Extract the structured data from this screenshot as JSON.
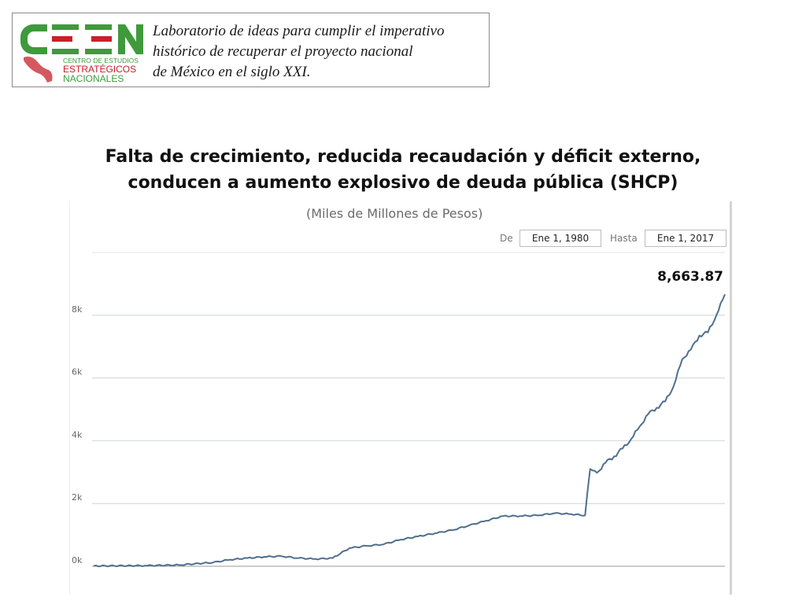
{
  "header": {
    "logo_text": "CEEN",
    "logo_sub": [
      "CENTRO DE ESTUDIOS",
      "ESTRATÉGICOS",
      "NACIONALES"
    ],
    "tagline": [
      "Laboratorio de ideas para cumplir el imperativo",
      "histórico de recuperar el proyecto nacional",
      "de México en el siglo XXI."
    ],
    "colors": {
      "green": "#3f9a3c",
      "red": "#c8202a"
    }
  },
  "slide": {
    "title_lines": [
      "Falta de crecimiento, reducida recaudación y déficit externo,",
      "conducen a aumento explosivo de deuda pública (SHCP)"
    ]
  },
  "chart_controls": {
    "from_label": "De",
    "from_value": "Ene 1, 1980",
    "to_label": "Hasta",
    "to_value": "Ene 1, 2017"
  },
  "chart_data": {
    "type": "line",
    "subtitle": "(Miles de Millones de Pesos)",
    "xlim": [
      1980,
      2017
    ],
    "ylim": [
      0,
      10000
    ],
    "y_ticks": [
      0,
      2000,
      4000,
      6000,
      8000
    ],
    "y_tick_labels": [
      "0k",
      "2k",
      "4k",
      "6k",
      "8k"
    ],
    "last_value_label": "8,663.87",
    "line_color": "#4f6f8f",
    "grid": true,
    "x": [
      1980,
      1983,
      1985,
      1987,
      1988,
      1989,
      1990,
      1991,
      1992,
      1993,
      1994,
      1995,
      1996,
      1997,
      1998,
      1999,
      2000,
      2001,
      2002,
      2003,
      2004,
      2005,
      2006,
      2007,
      2008,
      2008.8,
      2009.1,
      2009.5,
      2010,
      2010.5,
      2011,
      2011.5,
      2012,
      2012.5,
      2013,
      2013.5,
      2014,
      2014.5,
      2015,
      2015.5,
      2016,
      2016.5,
      2017
    ],
    "y": [
      10,
      20,
      40,
      120,
      210,
      260,
      300,
      320,
      260,
      230,
      260,
      580,
      650,
      700,
      850,
      950,
      1050,
      1150,
      1300,
      1450,
      1600,
      1600,
      1620,
      1690,
      1660,
      1620,
      3100,
      2980,
      3300,
      3500,
      3750,
      4050,
      4450,
      4850,
      5050,
      5250,
      5750,
      6600,
      6900,
      7350,
      7450,
      8000,
      8663.87
    ]
  }
}
